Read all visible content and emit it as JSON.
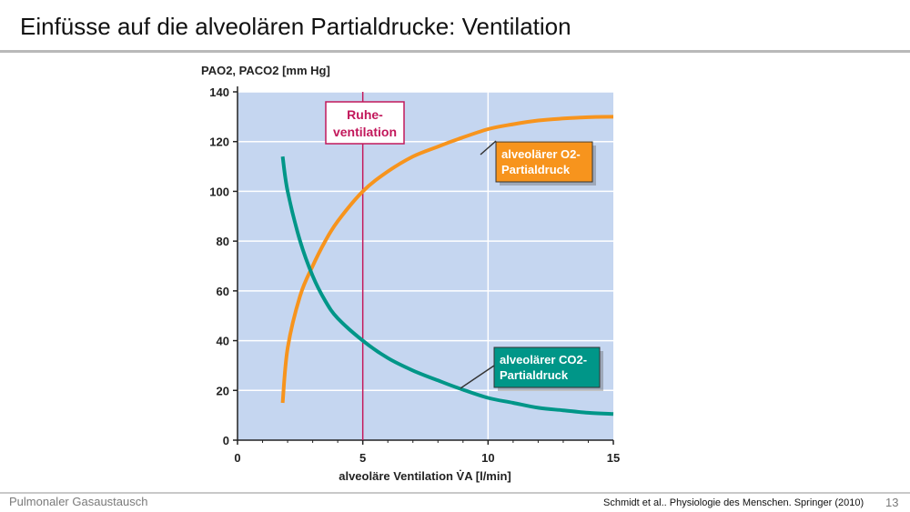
{
  "slide": {
    "title": "Einfüsse auf die alveolären Partialdrucke:  Ventilation",
    "footer_left": "Pulmonaler Gasaustausch",
    "citation": "Schmidt et al.. Physiologie des Menschen. Springer (2010)",
    "page_number": "13"
  },
  "colors": {
    "plot_bg": "#c5d6f0",
    "grid": "#ffffff",
    "o2_curve": "#f7941d",
    "co2_curve": "#009688",
    "rest_line": "#c2185b"
  },
  "chart_data": {
    "type": "line",
    "title": "",
    "ylabel": "PAO2, PACO2 [mm Hg]",
    "xlabel": "alveoläre Ventilation V̇A [l/min]",
    "xlim": [
      0,
      15
    ],
    "ylim": [
      0,
      140
    ],
    "xticks": [
      "0",
      "5",
      "10",
      "15"
    ],
    "yticks": [
      "0",
      "20",
      "40",
      "60",
      "80",
      "100",
      "120",
      "140"
    ],
    "grid": true,
    "series": [
      {
        "name": "alveolärer O2-Partialdruck",
        "x": [
          1.8,
          2.0,
          2.5,
          3.0,
          3.5,
          4.0,
          5.0,
          6.0,
          7.0,
          8.0,
          8.8,
          10.0,
          11.0,
          12.0,
          13.0,
          14.0,
          15.0
        ],
        "y": [
          15,
          37,
          58,
          70,
          80,
          88,
          100,
          108,
          114,
          118,
          121,
          125,
          127,
          128.5,
          129.3,
          129.8,
          130
        ]
      },
      {
        "name": "alveolärer CO2-Partialdruck",
        "x": [
          1.8,
          2.0,
          2.5,
          3.0,
          3.5,
          4.0,
          5.0,
          6.0,
          7.0,
          8.0,
          8.8,
          10.0,
          11.0,
          12.0,
          13.0,
          14.0,
          15.0
        ],
        "y": [
          114,
          100,
          80,
          66,
          56,
          49,
          40,
          33,
          28,
          24,
          21,
          17,
          15,
          13,
          12,
          11,
          10.5
        ]
      }
    ],
    "annotations": [
      {
        "label": "Ruhe-ventilation",
        "line1": "Ruhe-",
        "line2": "ventilation",
        "x": 5
      },
      {
        "label": "alveolärer O2-Partialdruck",
        "line1": "alveolärer O2-",
        "line2": "Partialdruck",
        "series": 0
      },
      {
        "label": "alveolärer CO2-Partialdruck",
        "line1": "alveolärer CO2-",
        "line2": "Partialdruck",
        "series": 1
      }
    ]
  }
}
